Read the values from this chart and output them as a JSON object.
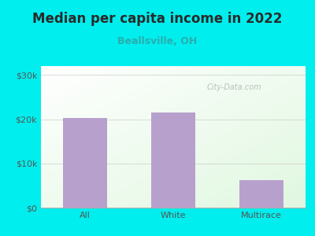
{
  "title": "Median per capita income in 2022",
  "subtitle": "Beallsville, OH",
  "categories": [
    "All",
    "White",
    "Multirace"
  ],
  "values": [
    20200,
    21500,
    6200
  ],
  "bar_color": "#b8a0cc",
  "title_color": "#2a2a2a",
  "subtitle_color": "#2aadad",
  "axis_label_color": "#555555",
  "outer_bg": "#00eeee",
  "ylim": [
    0,
    32000
  ],
  "yticks": [
    0,
    10000,
    20000,
    30000
  ],
  "ytick_labels": [
    "$0",
    "$10k",
    "$20k",
    "$30k"
  ],
  "watermark": "City-Data.com",
  "title_fontsize": 12,
  "subtitle_fontsize": 9,
  "tick_fontsize": 8
}
